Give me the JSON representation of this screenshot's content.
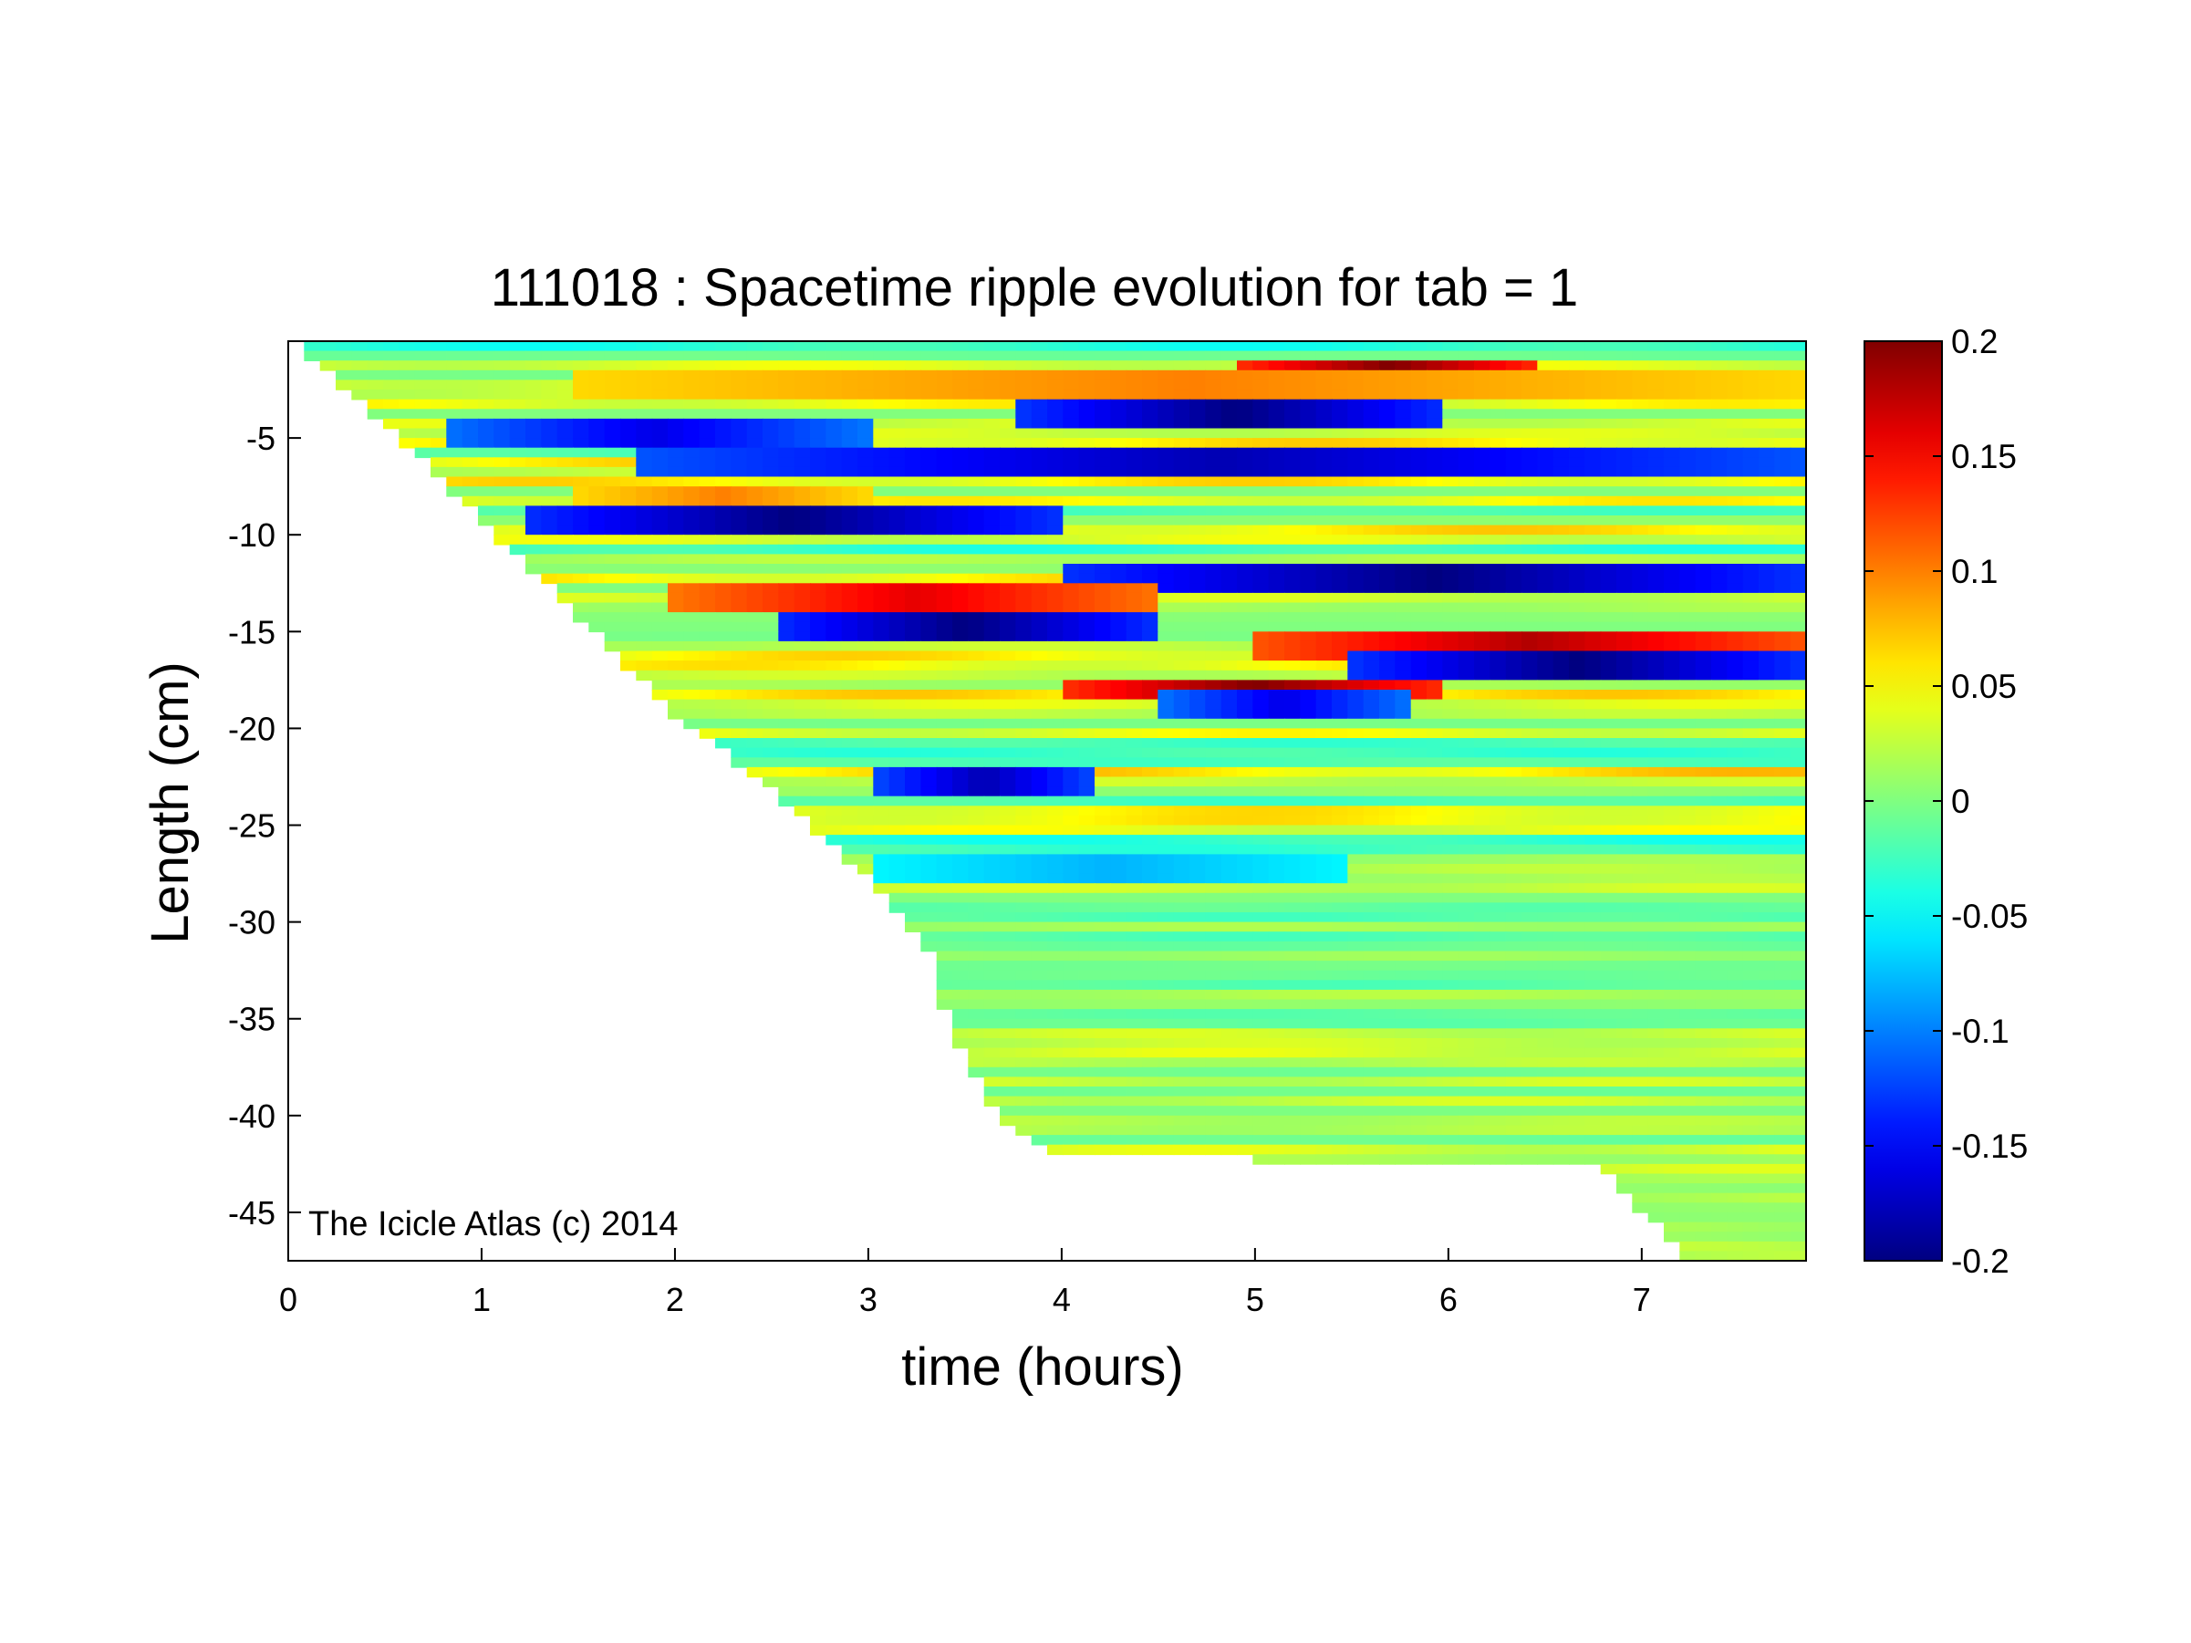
{
  "chart_data": {
    "type": "heatmap",
    "title": "111018 : Spacetime ripple evolution for tab = 1",
    "xlabel": "time (hours)",
    "ylabel": "Length (cm)",
    "xlim": [
      0,
      7.85
    ],
    "ylim": [
      -47.5,
      0
    ],
    "x_ticks": [
      0,
      1,
      2,
      3,
      4,
      5,
      6,
      7
    ],
    "x_tick_labels": [
      "0",
      "1",
      "2",
      "3",
      "4",
      "5",
      "6",
      "7"
    ],
    "y_ticks": [
      -5,
      -10,
      -15,
      -20,
      -25,
      -30,
      -35,
      -40,
      -45
    ],
    "y_tick_labels": [
      "-5",
      "-10",
      "-15",
      "-20",
      "-25",
      "-30",
      "-35",
      "-40",
      "-45"
    ],
    "colormap": "jet",
    "color_range": [
      -0.2,
      0.2
    ],
    "colorbar_ticks": [
      0.2,
      0.15,
      0.1,
      0.05,
      0,
      -0.05,
      -0.1,
      -0.15,
      -0.2
    ],
    "colorbar_tick_labels": [
      "0.2",
      "0.15",
      "0.1",
      "0.05",
      "0",
      "-0.05",
      "-0.1",
      "-0.15",
      "-0.2"
    ],
    "colorbar_placement": "right",
    "grid": false,
    "data_boundary": {
      "description_time_hours": [
        0.0,
        0.5,
        1.0,
        1.5,
        2.0,
        2.5,
        3.0,
        3.2,
        3.35,
        3.4,
        3.5,
        3.6,
        3.75,
        3.9,
        4.0,
        4.5,
        5.0,
        5.5,
        6.0,
        6.5,
        6.7,
        6.8,
        6.9,
        7.0,
        7.1,
        7.2,
        7.85
      ],
      "lowest_length_cm": [
        0.0,
        -4.5,
        -9.5,
        -14.5,
        -19.5,
        -23.5,
        -28.0,
        -30.5,
        -32.5,
        -35.0,
        -37.5,
        -39.0,
        -41.0,
        -42.0,
        -42.0,
        -42.3,
        -42.5,
        -42.5,
        -42.5,
        -42.5,
        -42.5,
        -43.0,
        -44.0,
        -45.5,
        -45.5,
        -47.5,
        -47.5
      ]
    },
    "features": [
      {
        "length_cm": -1.5,
        "t_start": 4.9,
        "t_end": 6.5,
        "value": 0.2
      },
      {
        "length_cm": -2.0,
        "t_start": 1.5,
        "t_end": 7.85,
        "value": 0.1
      },
      {
        "length_cm": -3.5,
        "t_start": 3.8,
        "t_end": 6.0,
        "value": -0.2
      },
      {
        "length_cm": -4.5,
        "t_start": 0.8,
        "t_end": 3.0,
        "value": -0.16
      },
      {
        "length_cm": -6.0,
        "t_start": 1.8,
        "t_end": 7.85,
        "value": -0.18
      },
      {
        "length_cm": -8.0,
        "t_start": 1.5,
        "t_end": 3.0,
        "value": 0.1
      },
      {
        "length_cm": -9.0,
        "t_start": 1.2,
        "t_end": 4.0,
        "value": -0.2
      },
      {
        "length_cm": -12.0,
        "t_start": 4.0,
        "t_end": 7.85,
        "value": -0.2
      },
      {
        "length_cm": -13.0,
        "t_start": 2.0,
        "t_end": 4.5,
        "value": 0.16
      },
      {
        "length_cm": -14.5,
        "t_start": 2.5,
        "t_end": 4.5,
        "value": -0.2
      },
      {
        "length_cm": -15.5,
        "t_start": 5.0,
        "t_end": 7.85,
        "value": 0.18
      },
      {
        "length_cm": -16.5,
        "t_start": 5.5,
        "t_end": 7.85,
        "value": -0.2
      },
      {
        "length_cm": -17.8,
        "t_start": 4.0,
        "t_end": 6.0,
        "value": 0.2
      },
      {
        "length_cm": -18.5,
        "t_start": 4.5,
        "t_end": 5.8,
        "value": -0.16
      },
      {
        "length_cm": -22.5,
        "t_start": 3.0,
        "t_end": 4.2,
        "value": -0.18
      },
      {
        "length_cm": -27.0,
        "t_start": 3.0,
        "t_end": 5.5,
        "value": -0.08
      }
    ],
    "annotations": [
      "The Icicle Atlas (c) 2014"
    ]
  },
  "colors": {
    "axis": "#000000",
    "background": "#ffffff"
  }
}
